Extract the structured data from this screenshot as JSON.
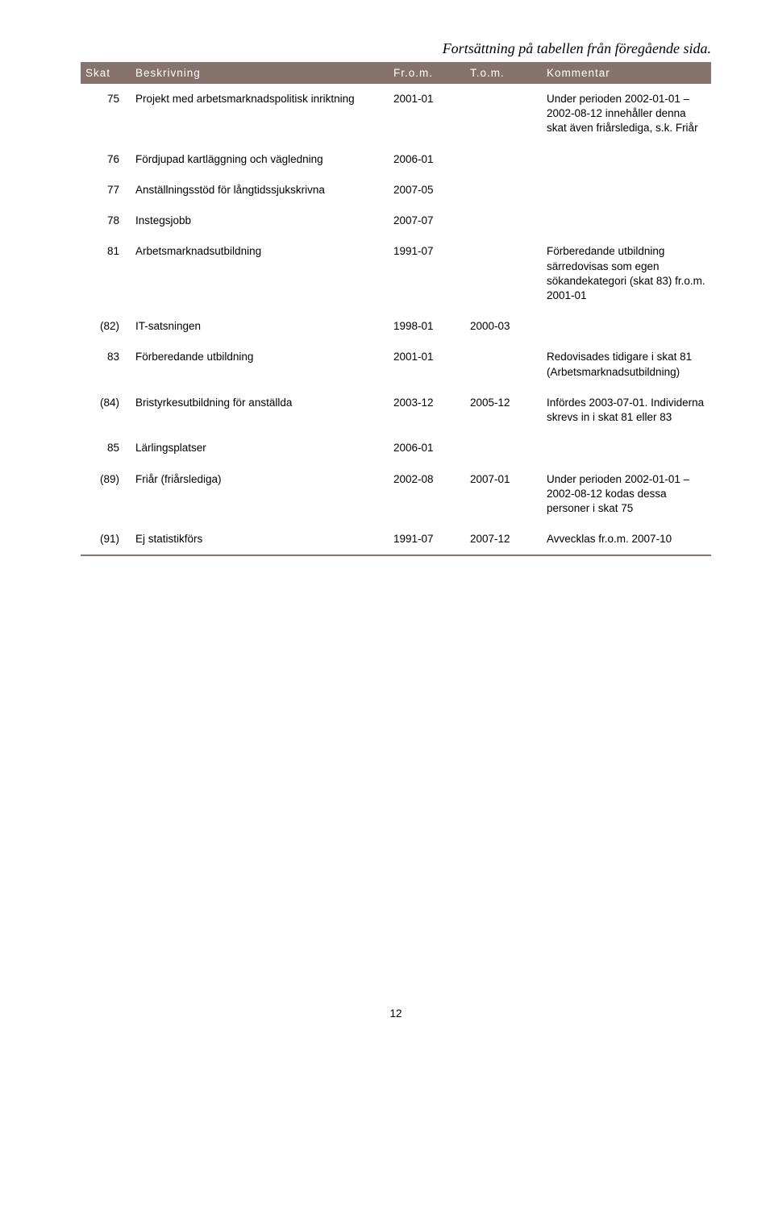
{
  "caption": "Fortsättning på tabellen från föregående sida.",
  "columns": {
    "skat": "Skat",
    "beskrivning": "Beskrivning",
    "from": "Fr.o.m.",
    "tom": "T.o.m.",
    "kommentar": "Kommentar"
  },
  "rows": [
    {
      "skat": "75",
      "beskrivning": "Projekt med arbetsmarknadspolitisk inriktning",
      "from": "2001-01",
      "tom": "",
      "kommentar": "Under perioden 2002-01-01 – 2002-08-12 innehåller denna skat även friårslediga, s.k. Friår"
    },
    {
      "skat": "76",
      "beskrivning": "Fördjupad kartläggning och vägledning",
      "from": "2006-01",
      "tom": "",
      "kommentar": ""
    },
    {
      "skat": "77",
      "beskrivning": "Anställningsstöd för långtidssjukskrivna",
      "from": "2007-05",
      "tom": "",
      "kommentar": ""
    },
    {
      "skat": "78",
      "beskrivning": "Instegsjobb",
      "from": "2007-07",
      "tom": "",
      "kommentar": ""
    },
    {
      "skat": "81",
      "beskrivning": "Arbetsmarknadsutbildning",
      "from": "1991-07",
      "tom": "",
      "kommentar": "Förberedande utbildning särredovisas som egen sökandekategori (skat 83) fr.o.m. 2001-01"
    },
    {
      "skat": "(82)",
      "beskrivning": "IT-satsningen",
      "from": "1998-01",
      "tom": "2000-03",
      "kommentar": ""
    },
    {
      "skat": "83",
      "beskrivning": "Förberedande utbildning",
      "from": "2001-01",
      "tom": "",
      "kommentar": "Redovisades tidigare i skat 81 (Arbetsmarknadsutbildning)"
    },
    {
      "skat": "(84)",
      "beskrivning": "Bristyrkesutbildning för anställda",
      "from": "2003-12",
      "tom": "2005-12",
      "kommentar": "Infördes 2003-07-01. Individerna skrevs in i skat 81 eller 83"
    },
    {
      "skat": "85",
      "beskrivning": "Lärlingsplatser",
      "from": "2006-01",
      "tom": "",
      "kommentar": ""
    },
    {
      "skat": "(89)",
      "beskrivning": "Friår (friårslediga)",
      "from": "2002-08",
      "tom": "2007-01",
      "kommentar": "Under perioden 2002-01-01 – 2002-08-12 kodas dessa personer i skat 75"
    },
    {
      "skat": "(91)",
      "beskrivning": "Ej statistikförs",
      "from": "1991-07",
      "tom": "2007-12",
      "kommentar": "Avvecklas fr.o.m. 2007-10"
    }
  ],
  "page_number": "12",
  "colors": {
    "header_bg": "#86736b",
    "header_fg": "#ffffff",
    "rule": "#86736b"
  }
}
